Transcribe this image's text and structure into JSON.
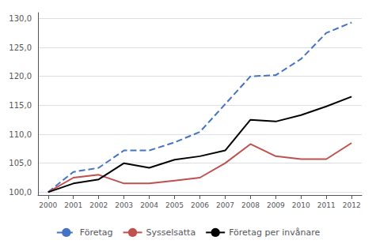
{
  "chart_data": {
    "type": "line",
    "x": [
      2000,
      2001,
      2002,
      2003,
      2004,
      2005,
      2006,
      2007,
      2008,
      2009,
      2010,
      2011,
      2012
    ],
    "series": [
      {
        "name": "Företag",
        "color": "#4472C4",
        "line_style": "dashed",
        "values": [
          100.0,
          103.5,
          104.2,
          107.2,
          107.2,
          108.6,
          110.4,
          115.2,
          120.0,
          120.2,
          123.0,
          127.5,
          129.3
        ]
      },
      {
        "name": "Sysselsatta",
        "color": "#C0504D",
        "line_style": "solid",
        "values": [
          100.0,
          102.5,
          103.0,
          101.5,
          101.5,
          102.0,
          102.5,
          105.0,
          108.3,
          106.2,
          105.7,
          105.7,
          108.5
        ]
      },
      {
        "name": "Företag per invånare",
        "color": "#000000",
        "line_style": "solid",
        "values": [
          100.0,
          101.5,
          102.2,
          105.0,
          104.2,
          105.6,
          106.2,
          107.2,
          112.5,
          112.2,
          113.3,
          114.8,
          116.5
        ]
      }
    ],
    "xlim": [
      1999.6,
      2012.4
    ],
    "xticks": [
      2000,
      2001,
      2002,
      2003,
      2004,
      2005,
      2006,
      2007,
      2008,
      2009,
      2010,
      2011,
      2012
    ],
    "ylim": [
      99.5,
      131.0
    ],
    "yticks": [
      {
        "value": 100.0,
        "label": "100,0"
      },
      {
        "value": 105.0,
        "label": "105,0"
      },
      {
        "value": 110.0,
        "label": "110,0"
      },
      {
        "value": 115.0,
        "label": "115,0"
      },
      {
        "value": 120.0,
        "label": "120,0"
      },
      {
        "value": 125.0,
        "label": "125,0"
      },
      {
        "value": 130.0,
        "label": "130,0"
      }
    ],
    "grid": true,
    "legend": "bottom"
  }
}
